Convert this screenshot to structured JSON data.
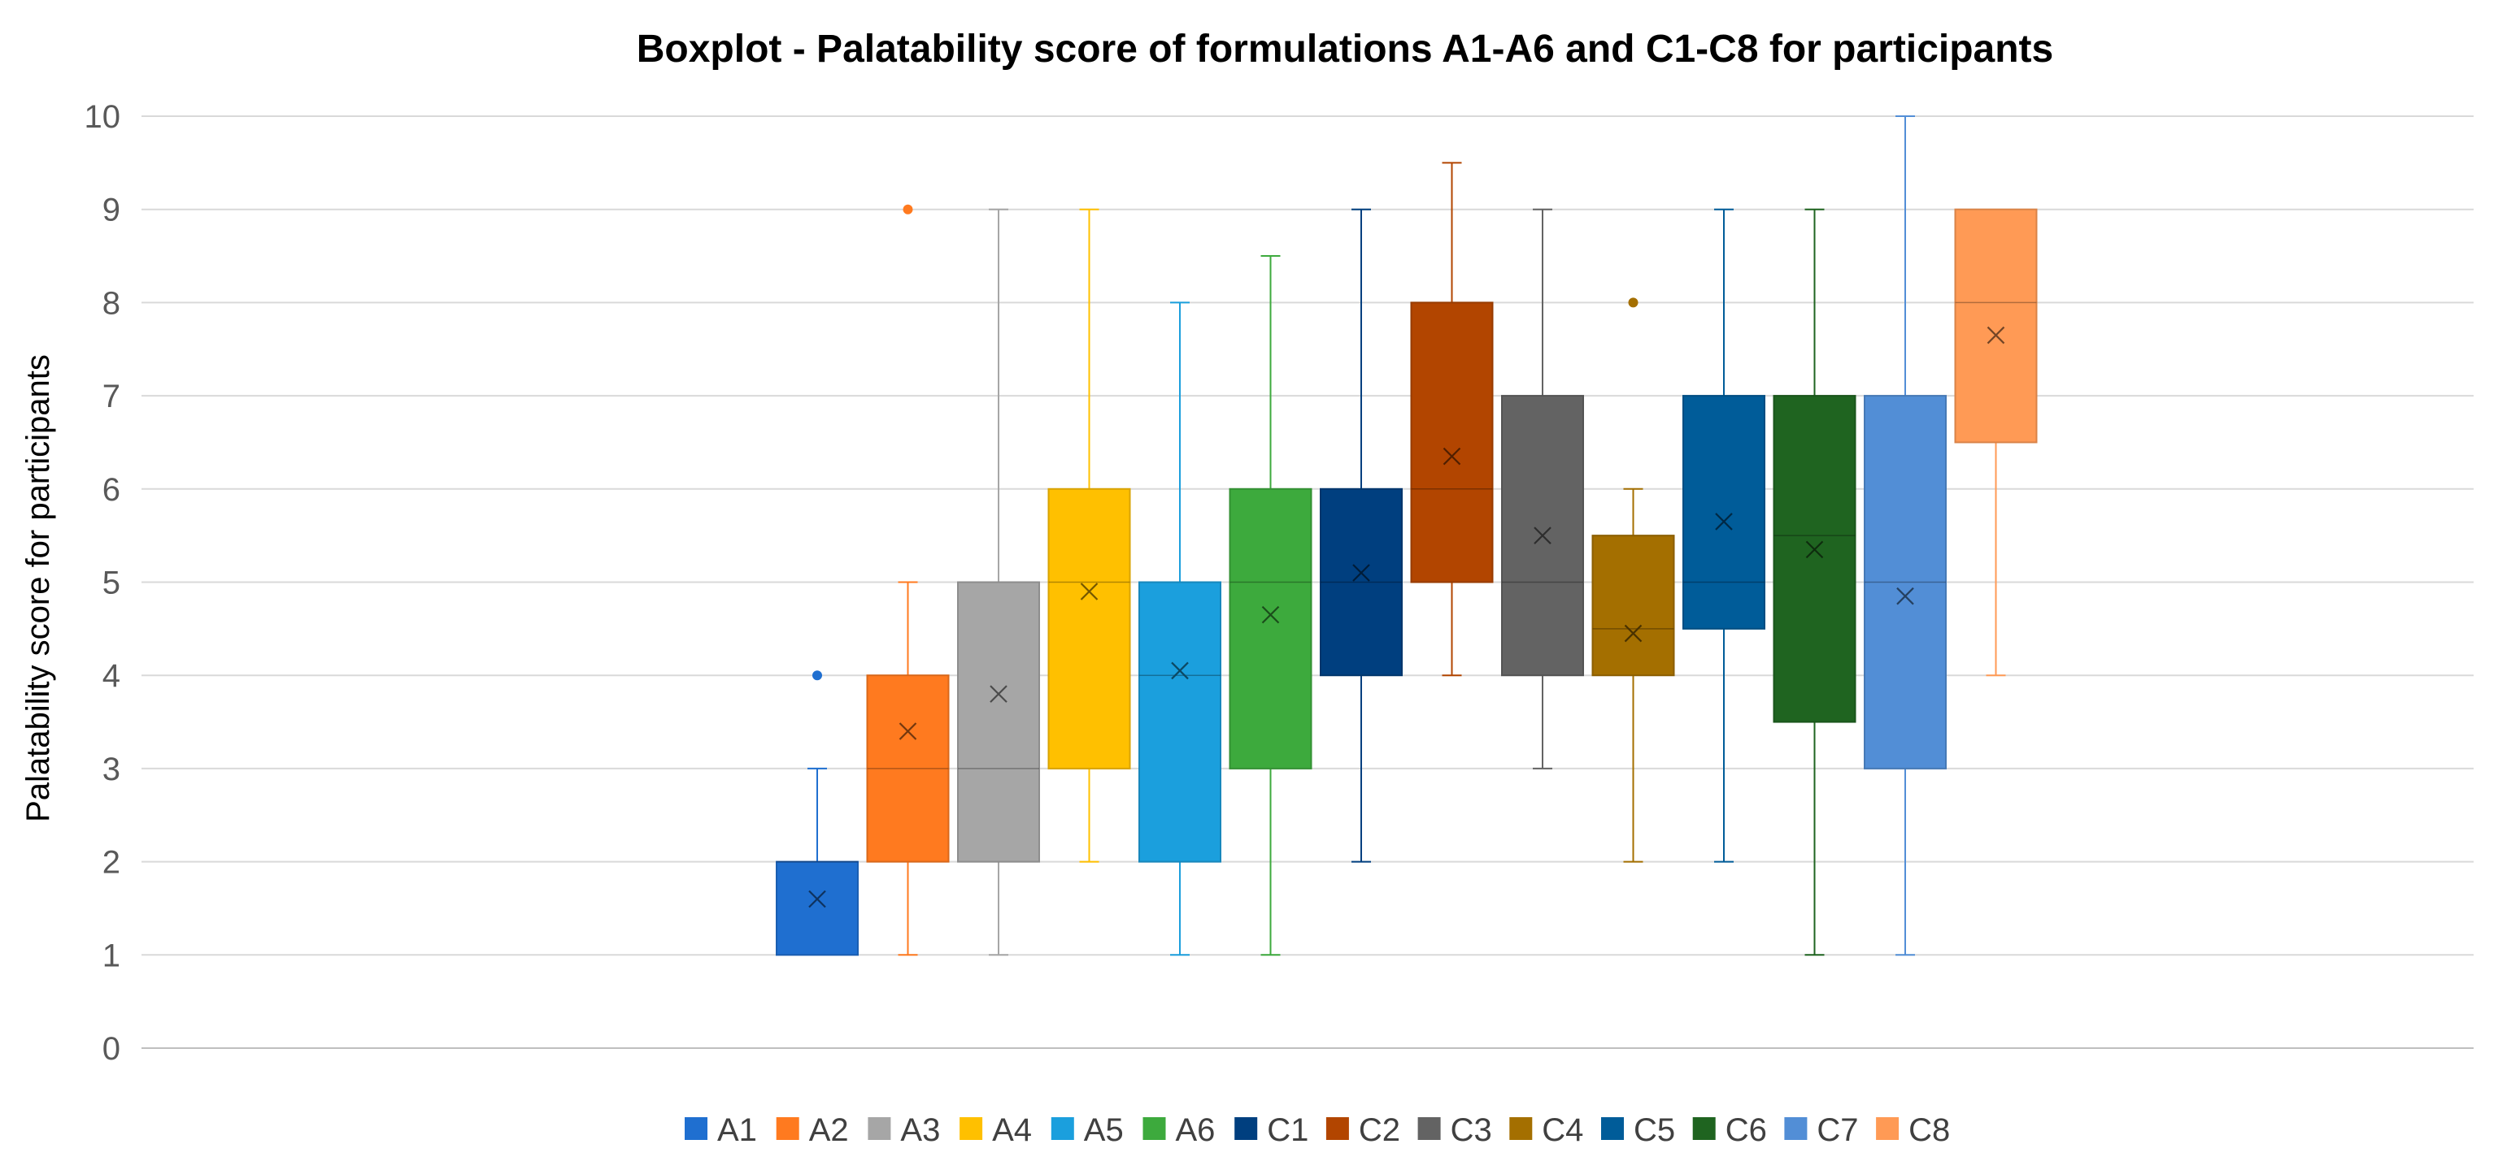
{
  "chart_data": {
    "type": "boxplot",
    "title": "Boxplot - Palatability score of formulations A1-A6 and C1-C8 for participants",
    "xlabel": "",
    "ylabel": "Palatability  score for participants",
    "ylim": [
      0,
      10
    ],
    "yticks": [
      "0",
      "1",
      "2",
      "3",
      "4",
      "5",
      "6",
      "7",
      "8",
      "9",
      "10"
    ],
    "grid": true,
    "legend_position": "bottom",
    "series": [
      {
        "name": "A1",
        "color": "#1F6FD0",
        "min": 1,
        "q1": 1,
        "median": 2,
        "q3": 2,
        "max": 3,
        "mean": 1.6,
        "outliers": [
          4
        ]
      },
      {
        "name": "A2",
        "color": "#FF7A1F",
        "min": 1,
        "q1": 2,
        "median": 3,
        "q3": 4,
        "max": 5,
        "mean": 3.4,
        "outliers": [
          9
        ]
      },
      {
        "name": "A3",
        "color": "#A6A6A6",
        "min": 1,
        "q1": 2,
        "median": 3,
        "q3": 5,
        "max": 9,
        "mean": 3.8,
        "outliers": []
      },
      {
        "name": "A4",
        "color": "#FFC000",
        "min": 2,
        "q1": 3,
        "median": 5,
        "q3": 6,
        "max": 9,
        "mean": 4.9,
        "outliers": []
      },
      {
        "name": "A5",
        "color": "#1B9FDD",
        "min": 1,
        "q1": 2,
        "median": 4,
        "q3": 5,
        "max": 8,
        "mean": 4.05,
        "outliers": []
      },
      {
        "name": "A6",
        "color": "#3DAA3D",
        "min": 1,
        "q1": 3,
        "median": 5,
        "q3": 6,
        "max": 8.5,
        "mean": 4.65,
        "outliers": []
      },
      {
        "name": "C1",
        "color": "#003F7F",
        "min": 2,
        "q1": 4,
        "median": 5,
        "q3": 6,
        "max": 9,
        "mean": 5.1,
        "outliers": []
      },
      {
        "name": "C2",
        "color": "#B24500",
        "min": 4,
        "q1": 5,
        "median": 6,
        "q3": 8,
        "max": 9.5,
        "mean": 6.35,
        "outliers": []
      },
      {
        "name": "C3",
        "color": "#636363",
        "min": 3,
        "q1": 4,
        "median": 5,
        "q3": 7,
        "max": 9,
        "mean": 5.5,
        "outliers": []
      },
      {
        "name": "C4",
        "color": "#A46F00",
        "min": 2,
        "q1": 4,
        "median": 4.5,
        "q3": 5.5,
        "max": 6,
        "mean": 4.45,
        "outliers": [
          8
        ]
      },
      {
        "name": "C5",
        "color": "#005C99",
        "min": 2,
        "q1": 4.5,
        "median": 5,
        "q3": 7,
        "max": 9,
        "mean": 5.65,
        "outliers": []
      },
      {
        "name": "C6",
        "color": "#1F6420",
        "min": 1,
        "q1": 3.5,
        "median": 5.5,
        "q3": 7,
        "max": 9,
        "mean": 5.35,
        "outliers": []
      },
      {
        "name": "C7",
        "color": "#528ED6",
        "min": 1,
        "q1": 3,
        "median": 5,
        "q3": 7,
        "max": 10,
        "mean": 4.85,
        "outliers": []
      },
      {
        "name": "C8",
        "color": "#FF9A55",
        "min": 4,
        "q1": 6.5,
        "median": 8,
        "q3": 9,
        "max": 9,
        "mean": 7.65,
        "outliers": []
      }
    ]
  }
}
